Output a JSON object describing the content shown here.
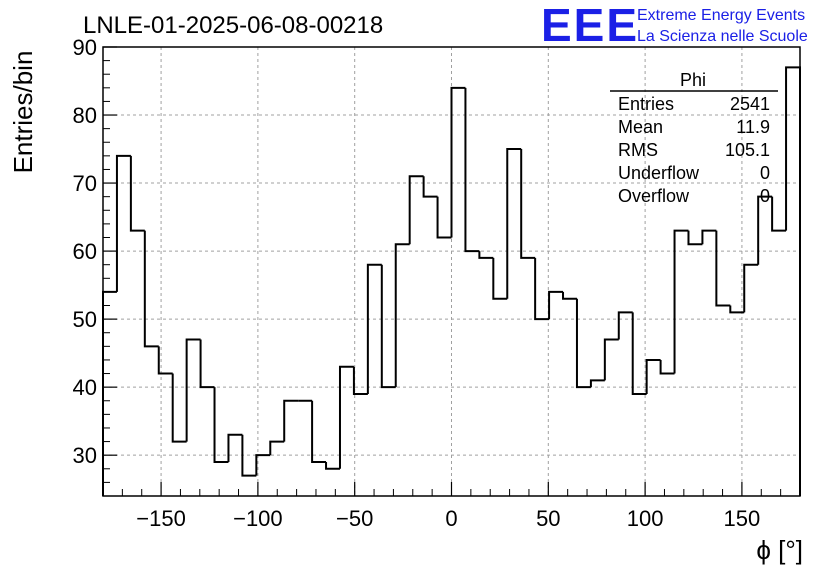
{
  "chart_data": {
    "type": "histogram",
    "title": "LNLE-01-2025-06-08-00218",
    "xlabel": "ϕ [°]",
    "ylabel": "Entries/bin",
    "xlim": [
      -180,
      180
    ],
    "ylim": [
      24,
      90
    ],
    "xticks": [
      -150,
      -100,
      -50,
      0,
      50,
      100,
      150
    ],
    "yticks": [
      30,
      40,
      50,
      60,
      70,
      80,
      90
    ],
    "grid": true,
    "bin_width": 7.2,
    "values": [
      54,
      74,
      63,
      46,
      42,
      32,
      47,
      40,
      29,
      33,
      27,
      30,
      32,
      38,
      38,
      29,
      28,
      43,
      39,
      58,
      40,
      61,
      71,
      68,
      62,
      84,
      60,
      59,
      53,
      75,
      59,
      50,
      54,
      53,
      40,
      41,
      47,
      51,
      39,
      44,
      42,
      63,
      61,
      63,
      52,
      51,
      58,
      68,
      63,
      87
    ],
    "stats_box": {
      "title": "Phi",
      "rows": [
        {
          "label": "Entries",
          "value": "2541"
        },
        {
          "label": "Mean",
          "value": "11.9"
        },
        {
          "label": "RMS",
          "value": "105.1"
        },
        {
          "label": "Underflow",
          "value": "0"
        },
        {
          "label": "Overflow",
          "value": "0"
        }
      ]
    }
  },
  "logo": {
    "text": "EEE",
    "line1": "Extreme Energy Events",
    "line2": "La Scienza nelle Scuole",
    "color": "#1b20e6"
  }
}
